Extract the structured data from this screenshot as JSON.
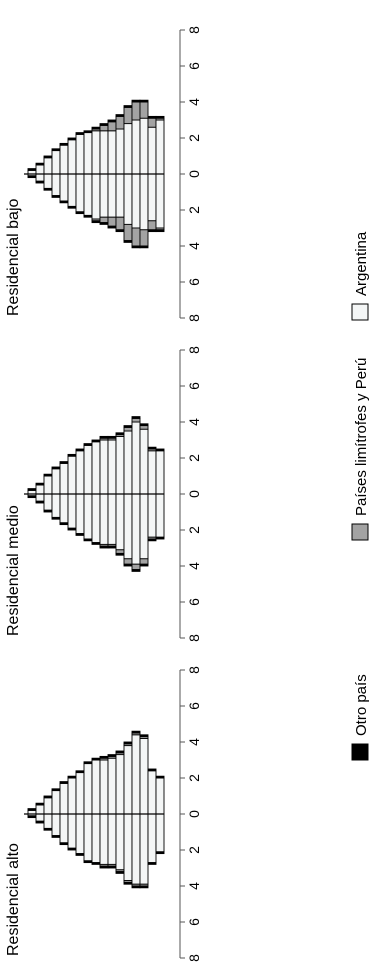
{
  "colors": {
    "argentina": "#f4f6f6",
    "limitrofes": "#a3a3a3",
    "otro": "#000000",
    "stroke": "#000000"
  },
  "legend": {
    "position": "bottom",
    "items": [
      {
        "key": "argentina",
        "label": "Argentina"
      },
      {
        "key": "limitrofes",
        "label": "Países limítrofes y Perú"
      },
      {
        "key": "otro",
        "label": "Otro país"
      }
    ]
  },
  "chart_data": [
    {
      "type": "bar",
      "subtype": "population-pyramid",
      "title": "Residencial alto",
      "xlim": [
        -8,
        8
      ],
      "xticks": [
        -8,
        -6,
        -4,
        -2,
        0,
        2,
        4,
        6,
        8
      ],
      "xtick_labels": [
        "8",
        "6",
        "4",
        "2",
        "0",
        "2",
        "4",
        "6",
        "8"
      ],
      "series_order": [
        "argentina",
        "limitrofes",
        "otro"
      ],
      "groups": 17,
      "left": {
        "argentina": [
          0.1,
          0.4,
          0.8,
          1.2,
          1.6,
          1.9,
          2.2,
          2.6,
          2.7,
          2.8,
          2.8,
          3.1,
          3.7,
          3.9,
          3.9,
          2.7,
          2.1
        ],
        "limitrofes": [
          0,
          0,
          0,
          0,
          0,
          0,
          0,
          0,
          0,
          0.1,
          0.1,
          0.1,
          0.1,
          0.1,
          0.1,
          0,
          0
        ],
        "otro": [
          0.1,
          0.1,
          0.1,
          0.1,
          0.1,
          0.1,
          0.1,
          0.1,
          0.1,
          0.1,
          0.1,
          0.1,
          0.1,
          0.1,
          0.1,
          0.1,
          0.1
        ]
      },
      "right": {
        "argentina": [
          0.2,
          0.5,
          0.9,
          1.3,
          1.7,
          2.0,
          2.3,
          2.8,
          3.0,
          3.0,
          3.1,
          3.3,
          3.8,
          4.4,
          4.2,
          2.4,
          2.0
        ],
        "limitrofes": [
          0,
          0,
          0,
          0,
          0,
          0,
          0,
          0,
          0,
          0.1,
          0.1,
          0.1,
          0.1,
          0.1,
          0.1,
          0,
          0
        ],
        "otro": [
          0.1,
          0.1,
          0.1,
          0.1,
          0.1,
          0.1,
          0.1,
          0.1,
          0.1,
          0.1,
          0.1,
          0.1,
          0.1,
          0.1,
          0.1,
          0.1,
          0.1
        ]
      }
    },
    {
      "type": "bar",
      "subtype": "population-pyramid",
      "title": "Residencial medio",
      "xlim": [
        -8,
        8
      ],
      "xticks": [
        -8,
        -6,
        -4,
        -2,
        0,
        2,
        4,
        6,
        8
      ],
      "xtick_labels": [
        "8",
        "6",
        "4",
        "2",
        "0",
        "2",
        "4",
        "6",
        "8"
      ],
      "series_order": [
        "argentina",
        "limitrofes",
        "otro"
      ],
      "groups": 17,
      "left": {
        "argentina": [
          0.1,
          0.4,
          0.9,
          1.3,
          1.6,
          1.9,
          2.2,
          2.5,
          2.7,
          2.8,
          2.8,
          3.1,
          3.6,
          3.9,
          3.6,
          2.4,
          2.4
        ],
        "limitrofes": [
          0,
          0,
          0,
          0,
          0,
          0,
          0,
          0,
          0,
          0.1,
          0.1,
          0.2,
          0.3,
          0.3,
          0.3,
          0.1,
          0
        ],
        "otro": [
          0.1,
          0.1,
          0.1,
          0.1,
          0.1,
          0.1,
          0.1,
          0.1,
          0.1,
          0.1,
          0.1,
          0.1,
          0.1,
          0.1,
          0.1,
          0.1,
          0.1
        ]
      },
      "right": {
        "argentina": [
          0.2,
          0.5,
          1.0,
          1.4,
          1.7,
          2.1,
          2.4,
          2.7,
          2.9,
          3.0,
          3.0,
          3.2,
          3.5,
          4.0,
          3.6,
          2.4,
          2.4
        ],
        "limitrofes": [
          0,
          0,
          0,
          0,
          0,
          0,
          0,
          0,
          0,
          0.1,
          0.1,
          0.1,
          0.2,
          0.2,
          0.2,
          0.1,
          0
        ],
        "otro": [
          0.1,
          0.1,
          0.1,
          0.1,
          0.1,
          0.1,
          0.1,
          0.1,
          0.1,
          0.1,
          0.1,
          0.1,
          0.1,
          0.1,
          0.1,
          0.1,
          0.1
        ]
      }
    },
    {
      "type": "bar",
      "subtype": "population-pyramid",
      "title": "Residencial bajo",
      "xlim": [
        -8,
        8
      ],
      "xticks": [
        -8,
        -6,
        -4,
        -2,
        0,
        2,
        4,
        6,
        8
      ],
      "xtick_labels": [
        "8",
        "6",
        "4",
        "2",
        "0",
        "2",
        "4",
        "6",
        "8"
      ],
      "series_order": [
        "argentina",
        "limitrofes",
        "otro"
      ],
      "groups": 17,
      "left": {
        "argentina": [
          0.1,
          0.4,
          0.8,
          1.2,
          1.5,
          1.8,
          2.1,
          2.3,
          2.5,
          2.4,
          2.4,
          2.4,
          2.8,
          3.0,
          3.1,
          2.6,
          3.0
        ],
        "limitrofes": [
          0,
          0,
          0,
          0,
          0,
          0,
          0,
          0,
          0.1,
          0.3,
          0.5,
          0.7,
          0.9,
          1.0,
          0.9,
          0.5,
          0.1
        ],
        "otro": [
          0.1,
          0.1,
          0.1,
          0.1,
          0.1,
          0.1,
          0.1,
          0.1,
          0.1,
          0.1,
          0.1,
          0.1,
          0.1,
          0.1,
          0.1,
          0.1,
          0.1
        ]
      },
      "right": {
        "argentina": [
          0.2,
          0.5,
          0.9,
          1.3,
          1.6,
          1.9,
          2.2,
          2.3,
          2.4,
          2.4,
          2.4,
          2.5,
          2.8,
          3.0,
          3.1,
          2.6,
          3.0
        ],
        "limitrofes": [
          0,
          0,
          0,
          0,
          0,
          0,
          0,
          0,
          0.1,
          0.3,
          0.5,
          0.7,
          0.9,
          1.0,
          0.9,
          0.5,
          0.1
        ],
        "otro": [
          0.1,
          0.1,
          0.1,
          0.1,
          0.1,
          0.1,
          0.1,
          0.1,
          0.1,
          0.1,
          0.1,
          0.1,
          0.1,
          0.1,
          0.1,
          0.1,
          0.1
        ]
      }
    }
  ]
}
